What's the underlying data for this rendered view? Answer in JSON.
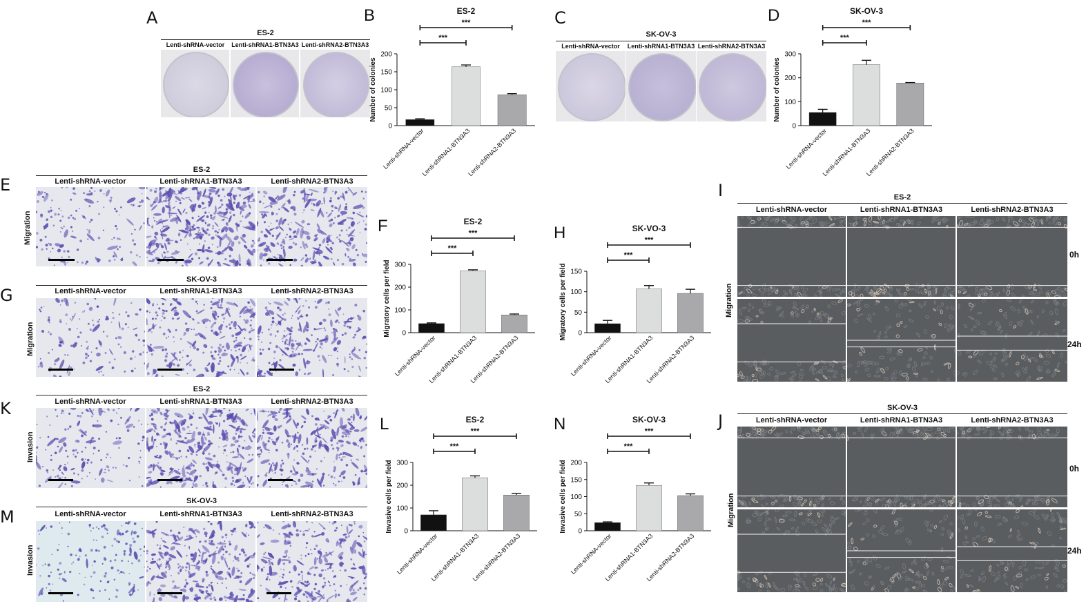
{
  "panels": {
    "A": {
      "letter": "A",
      "title": "ES-2",
      "groups": [
        "Lenti-shRNA-vector",
        "Lenti-shRNA1-BTN3A3",
        "Lenti-shRNA2-BTN3A3"
      ]
    },
    "C": {
      "letter": "C",
      "title": "SK-OV-3",
      "groups": [
        "Lenti-shRNA-vector",
        "Lenti-shRNA1-BTN3A3",
        "Lenti-shRNA2-BTN3A3"
      ]
    },
    "E": {
      "letter": "E",
      "title": "ES-2",
      "row_label": "Migration",
      "groups": [
        "Lenti-shRNA-vector",
        "Lenti-shRNA1-BTN3A3",
        "Lenti-shRNA2-BTN3A3"
      ]
    },
    "G": {
      "letter": "G",
      "title": "SK-OV-3",
      "row_label": "Migration",
      "groups": [
        "Lenti-shRNA-vector",
        "Lenti-shRNA1-BTN3A3",
        "Lenti-shRNA2-BTN3A3"
      ]
    },
    "K": {
      "letter": "K",
      "title": "ES-2",
      "row_label": "Invasion",
      "groups": [
        "Lenti-shRNA-vector",
        "Lenti-shRNA1-BTN3A3",
        "Lenti-shRNA2-BTN3A3"
      ]
    },
    "M": {
      "letter": "M",
      "title": "SK-OV-3",
      "row_label": "Invasion",
      "groups": [
        "Lenti-shRNA-vector",
        "Lenti-shRNA1-BTN3A3",
        "Lenti-shRNA2-BTN3A3"
      ]
    },
    "I": {
      "letter": "I",
      "title": "ES-2",
      "row_label": "Migration",
      "groups": [
        "Lenti-shRNA-vector",
        "Lenti-shRNA1-BTN3A3",
        "Lenti-shRNA2-BTN3A3"
      ],
      "times": [
        "0h",
        "24h"
      ]
    },
    "J": {
      "letter": "J",
      "title": "SK-OV-3",
      "row_label": "Migration",
      "groups": [
        "Lenti-shRNA-vector",
        "Lenti-shRNA1-BTN3A3",
        "Lenti-shRNA2-BTN3A3"
      ],
      "times": [
        "0h",
        "24h"
      ]
    }
  },
  "colors": {
    "bar_vector": "#111111",
    "bar_sh1": "#dcdede",
    "bar_sh2": "#a9a9ab",
    "stain": "#5a4fb0",
    "phase": "#5a5d60"
  },
  "chart_data": [
    {
      "id": "B",
      "letter": "B",
      "type": "bar",
      "title": "ES-2",
      "ylabel": "Number of colonies",
      "ylim": [
        0,
        200
      ],
      "yticks": [
        0,
        50,
        100,
        150,
        200
      ],
      "categories": [
        "Lenti-shRNA-vector",
        "Lenti-shRNA1-BTN3A3",
        "Lenti-shRNA2-BTN3A3"
      ],
      "values": [
        17,
        164,
        86
      ],
      "errors": [
        2,
        5,
        3
      ],
      "significance": [
        {
          "from": 0,
          "to": 1,
          "label": "***"
        },
        {
          "from": 0,
          "to": 2,
          "label": "***"
        }
      ]
    },
    {
      "id": "D",
      "letter": "D",
      "type": "bar",
      "title": "SK-OV-3",
      "ylabel": "Number of colonies",
      "ylim": [
        0,
        300
      ],
      "yticks": [
        0,
        100,
        200,
        300
      ],
      "categories": [
        "Lenti-shRNA-vector",
        "Lenti-shRNA1-BTN3A3",
        "Lenti-shRNA2-BTN3A3"
      ],
      "values": [
        55,
        255,
        178
      ],
      "errors": [
        13,
        18,
        2
      ],
      "significance": [
        {
          "from": 0,
          "to": 1,
          "label": "***"
        },
        {
          "from": 0,
          "to": 2,
          "label": "***"
        }
      ]
    },
    {
      "id": "F",
      "letter": "F",
      "type": "bar",
      "title": "ES-2",
      "ylabel": "Migratory cells per field",
      "ylim": [
        0,
        300
      ],
      "yticks": [
        0,
        100,
        200,
        300
      ],
      "categories": [
        "Lenti-shRNA-vector",
        "Lenti-shRNA1-BTN3A3",
        "Lenti-shRNA2-BTN3A3"
      ],
      "values": [
        40,
        272,
        78
      ],
      "errors": [
        3,
        4,
        4
      ],
      "significance": [
        {
          "from": 0,
          "to": 1,
          "label": "***"
        },
        {
          "from": 0,
          "to": 2,
          "label": "***"
        }
      ]
    },
    {
      "id": "H",
      "letter": "H",
      "type": "bar",
      "title": "SK-VO-3",
      "ylabel": "Migratory cells per field",
      "ylim": [
        0,
        150
      ],
      "yticks": [
        0,
        50,
        100,
        150
      ],
      "categories": [
        "Lenti-shRNA-vector",
        "Lenti-shRNA1-BTN3A3",
        "Lenti-shRNA2-BTN3A3"
      ],
      "values": [
        22,
        107,
        96
      ],
      "errors": [
        8,
        8,
        10
      ],
      "significance": [
        {
          "from": 0,
          "to": 1,
          "label": "***"
        },
        {
          "from": 0,
          "to": 2,
          "label": "***"
        }
      ]
    },
    {
      "id": "L",
      "letter": "L",
      "type": "bar",
      "title": "ES-2",
      "ylabel": "Invasive cells per field",
      "ylim": [
        0,
        300
      ],
      "yticks": [
        0,
        100,
        200,
        300
      ],
      "categories": [
        "Lenti-shRNA-vector",
        "Lenti-shRNA1-BTN3A3",
        "Lenti-shRNA2-BTN3A3"
      ],
      "values": [
        70,
        233,
        157
      ],
      "errors": [
        18,
        8,
        7
      ],
      "significance": [
        {
          "from": 0,
          "to": 1,
          "label": "***"
        },
        {
          "from": 0,
          "to": 2,
          "label": "***"
        }
      ]
    },
    {
      "id": "N",
      "letter": "N",
      "type": "bar",
      "title": "SK-OV-3",
      "ylabel": "Invasive cells per field",
      "ylim": [
        0,
        200
      ],
      "yticks": [
        0,
        50,
        100,
        150,
        200
      ],
      "categories": [
        "Lenti-shRNA-vector",
        "Lenti-shRNA1-BTN3A3",
        "Lenti-shRNA2-BTN3A3"
      ],
      "values": [
        24,
        133,
        103
      ],
      "errors": [
        2,
        7,
        5
      ],
      "significance": [
        {
          "from": 0,
          "to": 1,
          "label": "***"
        },
        {
          "from": 0,
          "to": 2,
          "label": "***"
        }
      ]
    }
  ]
}
